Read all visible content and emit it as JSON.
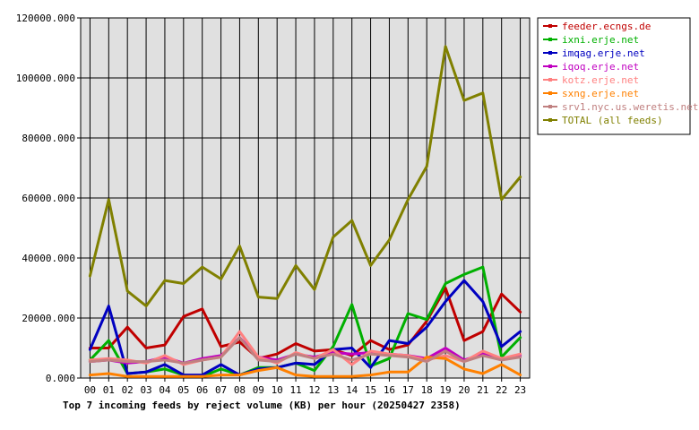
{
  "chart_data": {
    "type": "line",
    "title": "Top 7 incoming feeds by reject volume (KB) per hour (20250427 2358)",
    "xlabel": "",
    "ylabel": "",
    "ylim": [
      0,
      120000
    ],
    "y_ticks": [
      0,
      20000,
      40000,
      60000,
      80000,
      100000,
      120000
    ],
    "y_tick_labels": [
      "0.000",
      "20000.000",
      "40000.000",
      "60000.000",
      "80000.000",
      "100000.000",
      "120000.000"
    ],
    "categories": [
      "00",
      "01",
      "02",
      "03",
      "04",
      "05",
      "06",
      "07",
      "08",
      "09",
      "10",
      "11",
      "12",
      "13",
      "14",
      "15",
      "16",
      "17",
      "18",
      "19",
      "20",
      "21",
      "22",
      "23"
    ],
    "grid": true,
    "legend_position": "right",
    "colors": {
      "plot_background": "#e0e0e0",
      "grid": "#000000",
      "background": "#ffffff"
    },
    "series": [
      {
        "name": "feeder.ecngs.de",
        "color": "#c00000",
        "values": [
          10000,
          10000,
          17000,
          10000,
          11000,
          20500,
          23000,
          10500,
          12000,
          6500,
          8000,
          11500,
          9000,
          9500,
          7500,
          12500,
          9500,
          11000,
          19000,
          30000,
          12500,
          15500,
          28000,
          22000
        ]
      },
      {
        "name": "ixni.erje.net",
        "color": "#00b000",
        "values": [
          6000,
          12500,
          1500,
          2000,
          3000,
          1000,
          500,
          3000,
          1000,
          3500,
          3500,
          5000,
          2500,
          10500,
          24500,
          4000,
          6500,
          21500,
          19500,
          31500,
          34500,
          37000,
          7000,
          13500
        ]
      },
      {
        "name": "imqag.erje.net",
        "color": "#0000c0",
        "values": [
          9500,
          24000,
          1500,
          2000,
          4500,
          1000,
          1000,
          4500,
          1000,
          3000,
          3500,
          5000,
          4500,
          9500,
          10000,
          3500,
          12500,
          11500,
          17000,
          25500,
          32500,
          25500,
          10500,
          15500
        ]
      },
      {
        "name": "iqoq.erje.net",
        "color": "#c000c0",
        "values": [
          5500,
          6000,
          5000,
          5500,
          7000,
          5000,
          6500,
          7500,
          13500,
          7000,
          6000,
          8000,
          7000,
          8500,
          8000,
          8500,
          8000,
          7500,
          6500,
          10000,
          6000,
          8000,
          6500,
          7500
        ]
      },
      {
        "name": "kotz.erje.net",
        "color": "#ff8080",
        "values": [
          6000,
          6500,
          6000,
          5000,
          7500,
          4500,
          6000,
          7000,
          15500,
          7000,
          5000,
          8500,
          6500,
          9500,
          4500,
          9000,
          8000,
          7500,
          6000,
          7500,
          5500,
          9000,
          6500,
          8000
        ]
      },
      {
        "name": "sxng.erje.net",
        "color": "#ff8000",
        "values": [
          1000,
          1500,
          500,
          500,
          500,
          500,
          500,
          1000,
          1000,
          2500,
          3500,
          1000,
          500,
          500,
          500,
          1000,
          2000,
          2000,
          7000,
          6500,
          3000,
          1500,
          4500,
          1000
        ]
      },
      {
        "name": "srv1.nyc.us.weretis.net",
        "color": "#c08080",
        "values": [
          5500,
          6000,
          5500,
          5500,
          6000,
          5000,
          6000,
          7000,
          13500,
          6000,
          5500,
          8000,
          6500,
          8000,
          6000,
          8000,
          7500,
          7000,
          5500,
          9000,
          5500,
          7500,
          6000,
          7000
        ]
      },
      {
        "name": "TOTAL (all feeds)",
        "color": "#808000",
        "values": [
          34000,
          59500,
          29000,
          24000,
          32500,
          31500,
          37000,
          33000,
          44000,
          27000,
          26500,
          37500,
          29500,
          47000,
          52500,
          37500,
          46000,
          59500,
          70500,
          110500,
          92500,
          95000,
          59500,
          67000
        ]
      }
    ]
  }
}
